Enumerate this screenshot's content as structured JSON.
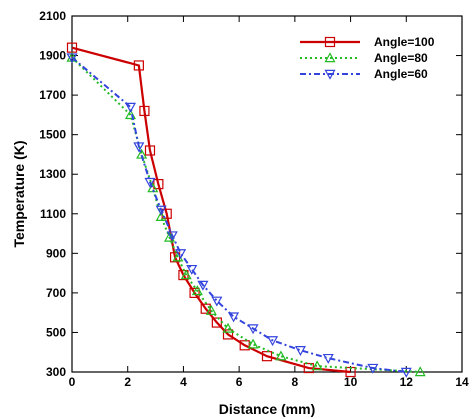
{
  "chart_data": {
    "type": "line",
    "xlabel": "Distance (mm)",
    "ylabel": "Temperature (K)",
    "xlim": [
      0,
      14
    ],
    "ylim": [
      300,
      2100
    ],
    "xticks": [
      0,
      2,
      4,
      6,
      8,
      10,
      12,
      14
    ],
    "yticks": [
      300,
      500,
      700,
      900,
      1100,
      1300,
      1500,
      1700,
      1900,
      2100
    ],
    "grid": false,
    "legend_position": "top-right",
    "series": [
      {
        "name": "Angle=100",
        "color": "#cc0000",
        "line_style": "solid",
        "marker": "square",
        "points": [
          [
            0,
            1940
          ],
          [
            2.4,
            1850
          ],
          [
            2.6,
            1620
          ],
          [
            2.8,
            1420
          ],
          [
            3.1,
            1250
          ],
          [
            3.4,
            1100
          ],
          [
            3.7,
            880
          ],
          [
            4.0,
            790
          ],
          [
            4.4,
            700
          ],
          [
            4.8,
            620
          ],
          [
            5.2,
            550
          ],
          [
            5.6,
            490
          ],
          [
            6.2,
            435
          ],
          [
            7.0,
            380
          ],
          [
            8.5,
            320
          ],
          [
            10.0,
            300
          ]
        ]
      },
      {
        "name": "Angle=80",
        "color": "#22bb22",
        "line_style": "dotted",
        "marker": "triangle-up",
        "points": [
          [
            0,
            1890
          ],
          [
            2.1,
            1600
          ],
          [
            2.5,
            1400
          ],
          [
            2.9,
            1230
          ],
          [
            3.2,
            1085
          ],
          [
            3.5,
            980
          ],
          [
            3.8,
            880
          ],
          [
            4.1,
            790
          ],
          [
            4.5,
            710
          ],
          [
            5.0,
            610
          ],
          [
            5.6,
            520
          ],
          [
            6.5,
            440
          ],
          [
            7.5,
            380
          ],
          [
            8.8,
            330
          ],
          [
            12.5,
            300
          ]
        ]
      },
      {
        "name": "Angle=60",
        "color": "#3344dd",
        "line_style": "dash-dot",
        "marker": "triangle-down",
        "points": [
          [
            0,
            1890
          ],
          [
            2.1,
            1640
          ],
          [
            2.4,
            1440
          ],
          [
            2.8,
            1260
          ],
          [
            3.2,
            1120
          ],
          [
            3.6,
            990
          ],
          [
            3.9,
            900
          ],
          [
            4.3,
            820
          ],
          [
            4.7,
            740
          ],
          [
            5.2,
            660
          ],
          [
            5.8,
            580
          ],
          [
            6.5,
            520
          ],
          [
            7.2,
            460
          ],
          [
            8.2,
            410
          ],
          [
            9.2,
            370
          ],
          [
            10.8,
            320
          ],
          [
            12.0,
            300
          ]
        ]
      }
    ]
  }
}
